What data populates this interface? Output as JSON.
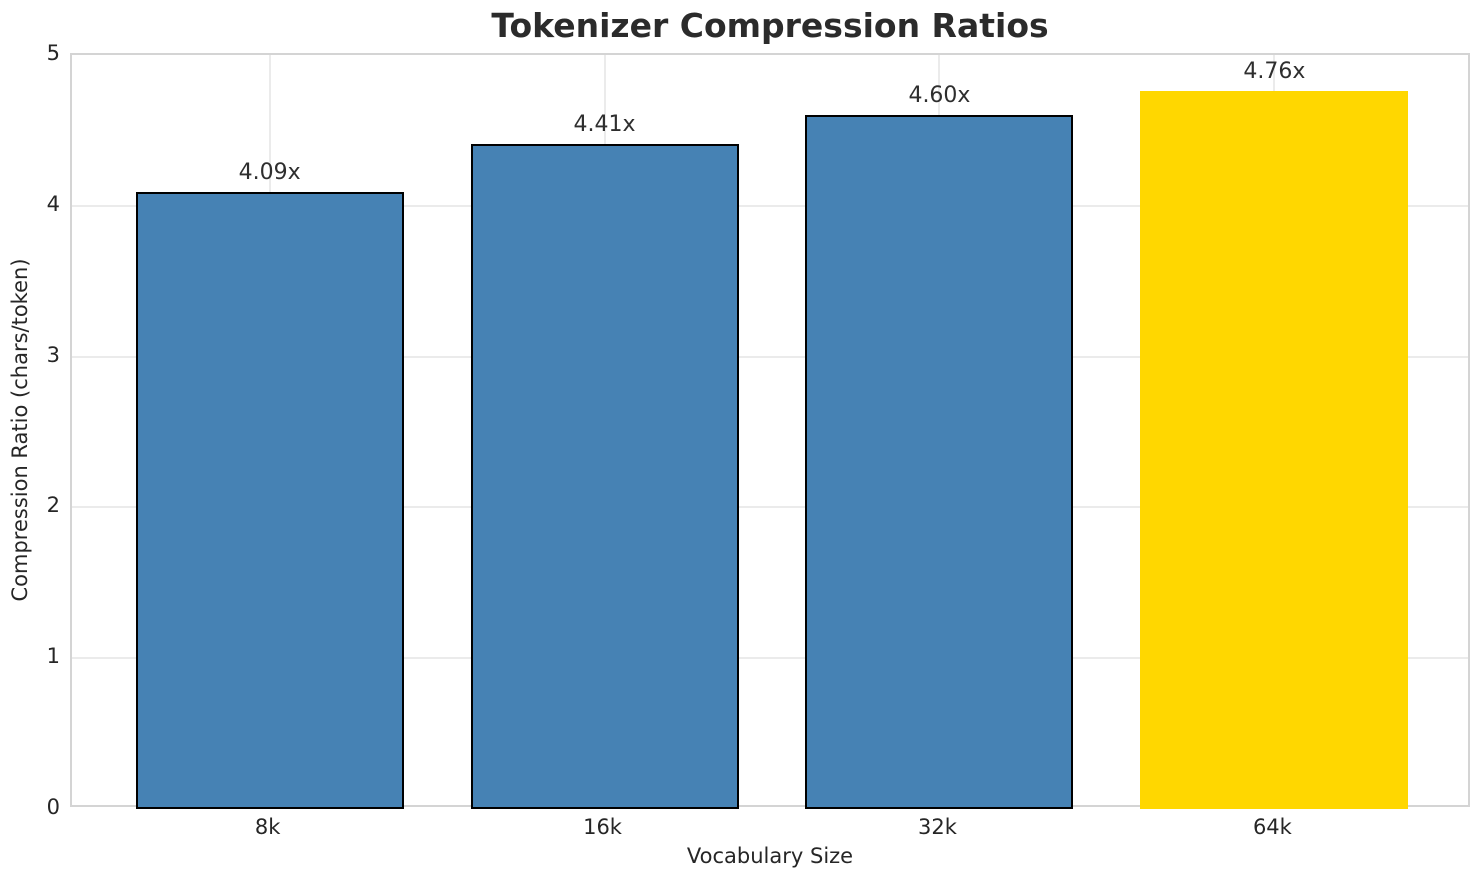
{
  "chart_data": {
    "type": "bar",
    "title": "Tokenizer Compression Ratios",
    "xlabel": "Vocabulary Size",
    "ylabel": "Compression Ratio (chars/token)",
    "categories": [
      "8k",
      "16k",
      "32k",
      "64k"
    ],
    "values": [
      4.09,
      4.41,
      4.6,
      4.76
    ],
    "value_labels": [
      "4.09x",
      "4.41x",
      "4.60x",
      "4.76x"
    ],
    "bar_colors": [
      "#4682B4",
      "#4682B4",
      "#4682B4",
      "#FFD700"
    ],
    "bar_edge_colors": [
      "#000000",
      "#000000",
      "#000000",
      "none"
    ],
    "ylim": [
      0,
      5
    ],
    "yticks": [
      "0",
      "1",
      "2",
      "3",
      "4",
      "5"
    ],
    "bar_width_fraction": 0.8,
    "grid": true,
    "legend_position": "none",
    "colors": {
      "primary_bar": "#4682B4",
      "highlight_bar": "#FFD700",
      "bar_edge": "#000000",
      "grid_line": "#ebebeb",
      "spine": "#d4d4d4",
      "tick_text": "#262626",
      "title_text": "#2b2b2b"
    }
  }
}
